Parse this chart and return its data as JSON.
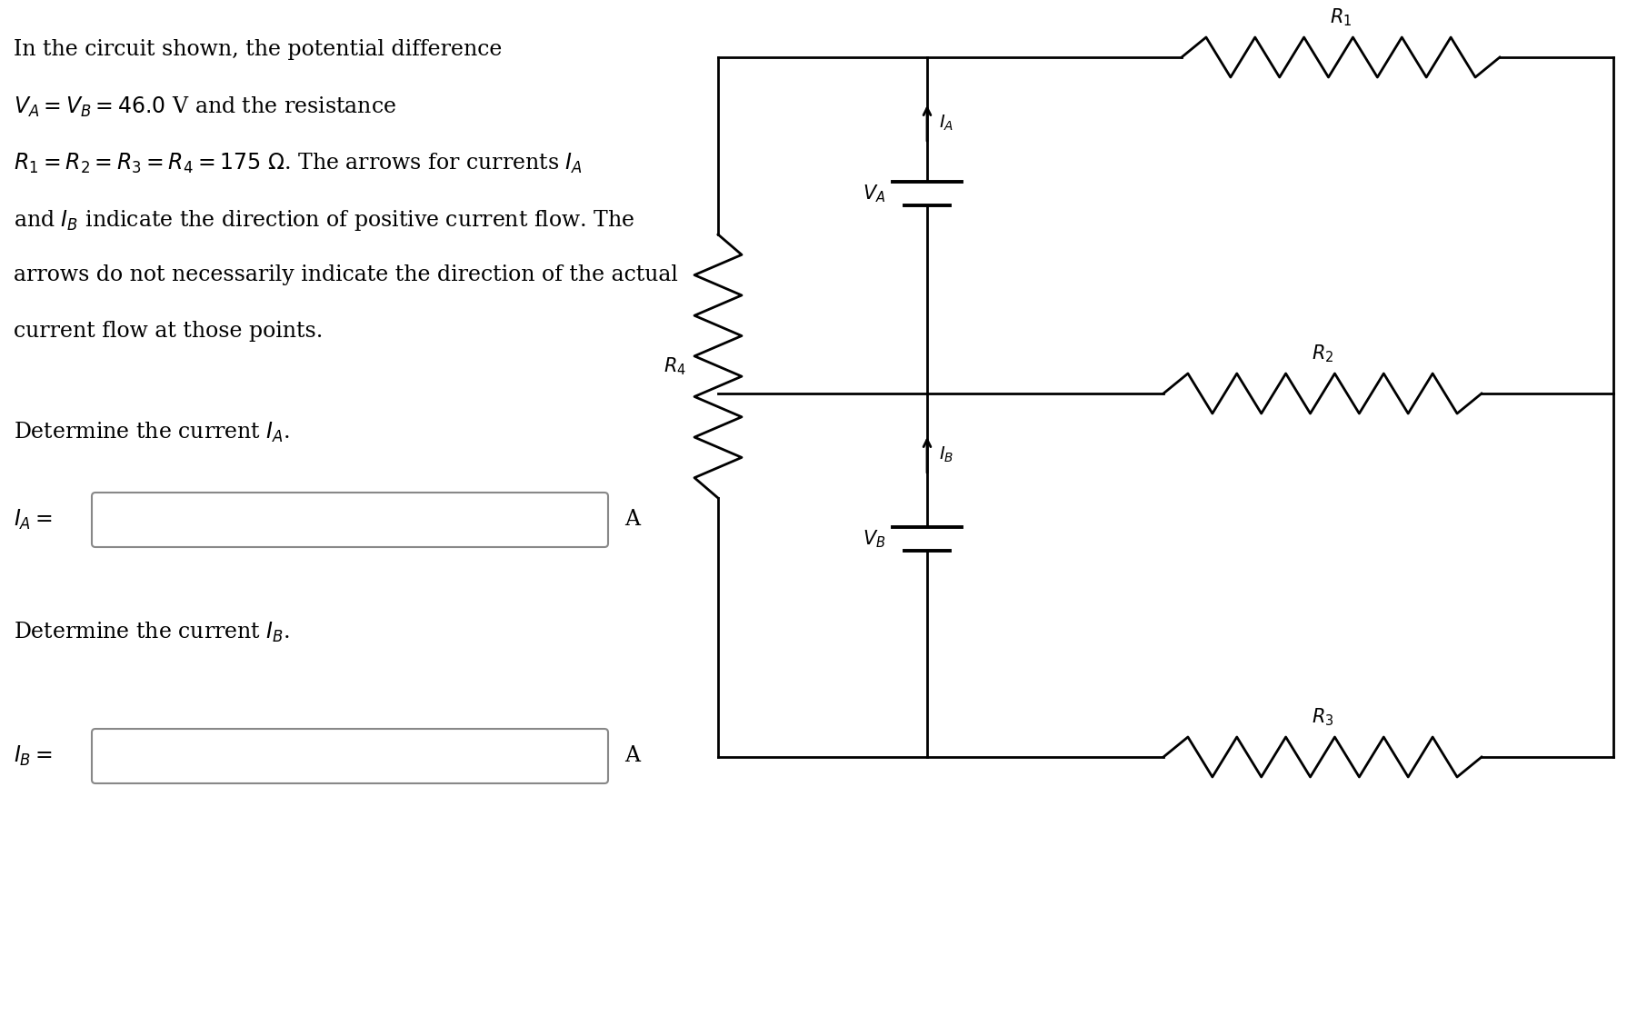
{
  "bg_color": "#ffffff",
  "line1": "In the circuit shown, the potential difference",
  "line2": "$V_A = V_B = 46.0$ V and the resistance",
  "line3": "$R_1 = R_2 = R_3 = R_4 = 175\\ \\Omega$. The arrows for currents $I_A$",
  "line4": "and $I_B$ indicate the direction of positive current flow. The",
  "line5": "arrows do not necessarily indicate the direction of the actual",
  "line6": "current flow at those points.",
  "det_IA": "Determine the current $I_A$.",
  "det_IB": "Determine the current $I_B$.",
  "label_IA": "$I_A =$",
  "label_IB": "$I_B =$",
  "unit_A": "A",
  "fs_main": 17,
  "fs_circuit": 15
}
